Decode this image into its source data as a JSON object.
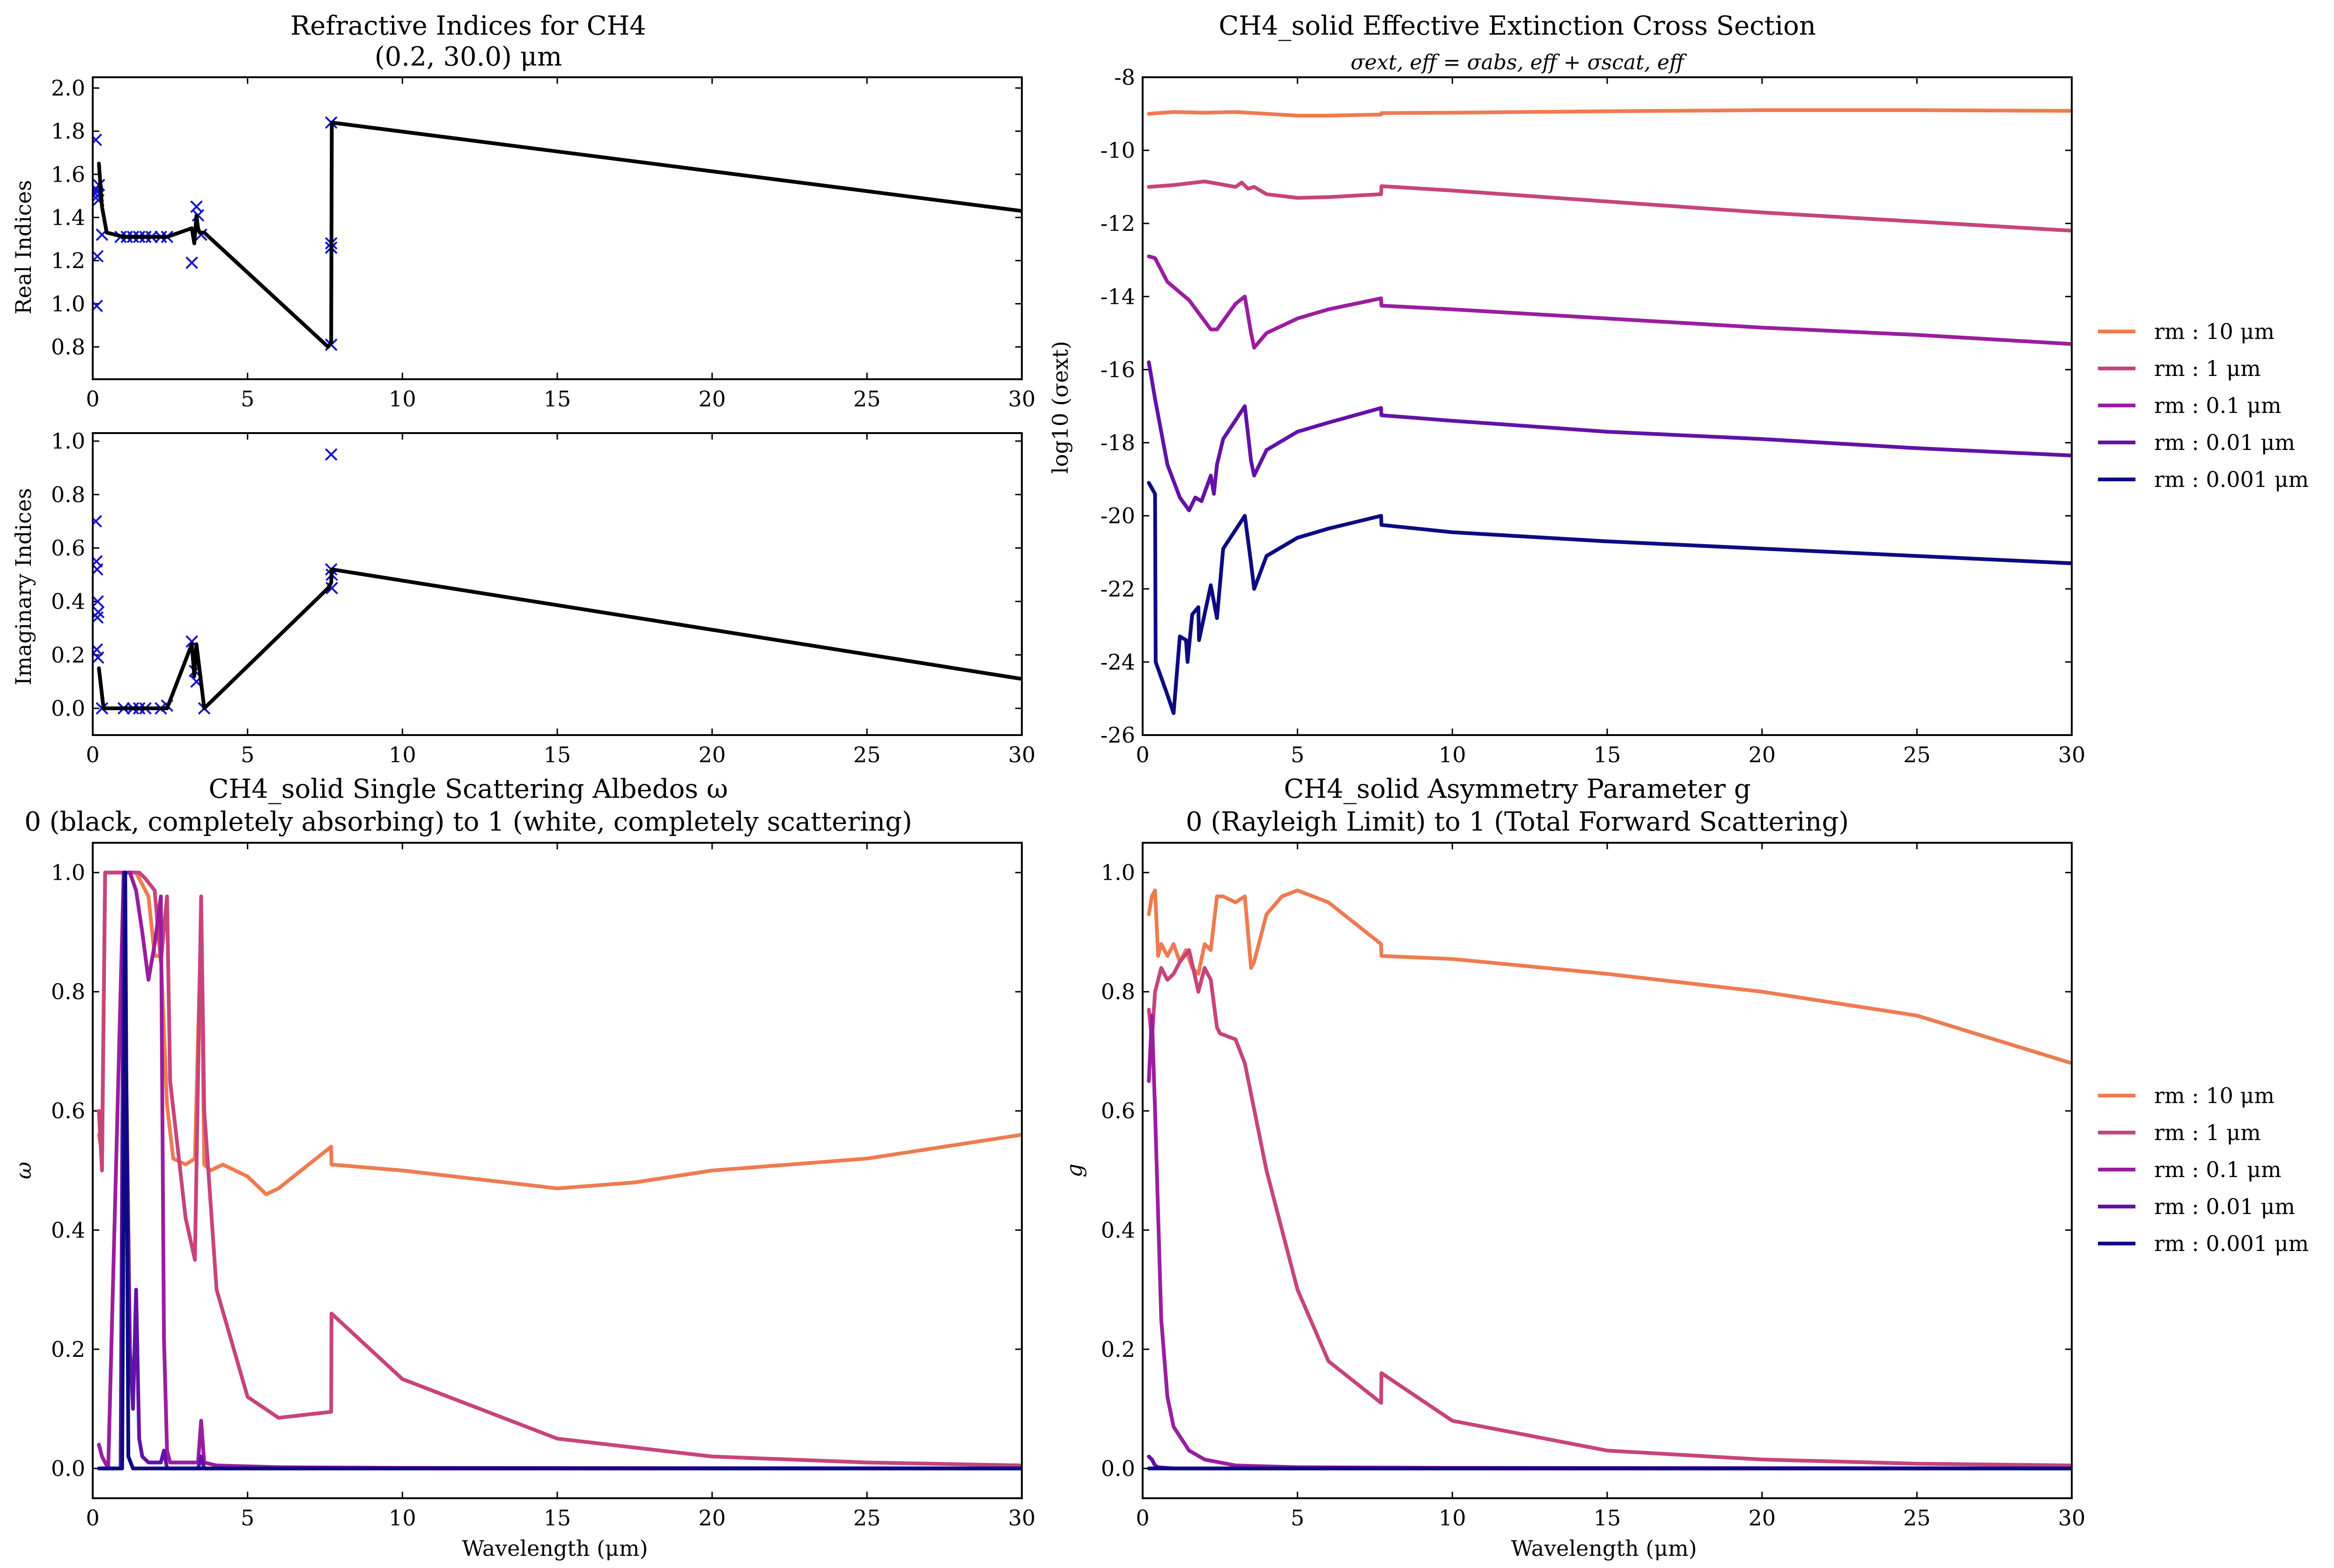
{
  "figure": {
    "panels": {
      "ri": {
        "title_line1": "Refractive Indices for CH4",
        "title_line2": "(0.2, 30.0) μm",
        "real_ylabel": "Real Indices",
        "imag_ylabel": "Imaginary Indices"
      },
      "ext": {
        "title": "CH4_solid Effective Extinction Cross Section",
        "subtitle": "σext, eff = σabs, eff + σscat, eff",
        "ylabel": "log10 (σext)"
      },
      "alb": {
        "title_line1": "CH4_solid Single Scattering Albedos ω",
        "title_line2": "0 (black, completely absorbing) to 1 (white, completely scattering)",
        "ylabel": "ω",
        "xlabel": "Wavelength (μm)"
      },
      "asym": {
        "title_line1": "CH4_solid Asymmetry Parameter g",
        "title_line2": "0 (Rayleigh Limit) to 1 (Total Forward Scattering)",
        "ylabel": "g",
        "xlabel": "Wavelength (μm)"
      }
    },
    "legend": [
      "rm : 10 μm",
      "rm : 1 μm",
      "rm : 0.1 μm",
      "rm : 0.01 μm",
      "rm : 0.001 μm"
    ],
    "colors": {
      "r10": "#ee7b51",
      "r1": "#c7447b",
      "r01": "#9a1d9f",
      "r001": "#6212a6",
      "r0001": "#0d0a82",
      "markers": "#1515cc",
      "interp": "#000000"
    }
  },
  "chart_data": [
    {
      "id": "real",
      "type": "scatter",
      "title": "Refractive Indices for CH4 (0.2, 30.0) μm",
      "ylabel": "Real Indices",
      "xlim": [
        0,
        30
      ],
      "ylim": [
        0.65,
        2.05
      ],
      "xticks": [
        0,
        5,
        10,
        15,
        20,
        25,
        30
      ],
      "yticks": [
        0.8,
        1.0,
        1.2,
        1.4,
        1.6,
        1.8,
        2.0
      ],
      "series": [
        {
          "role": "measured",
          "marker": "x",
          "x": [
            0.1,
            0.12,
            0.14,
            0.16,
            0.18,
            0.2,
            0.15,
            0.13,
            0.3,
            0.9,
            1.1,
            1.3,
            1.5,
            1.7,
            1.9,
            2.2,
            2.4,
            3.2,
            3.35,
            3.4,
            3.5,
            7.7,
            7.7,
            7.7,
            7.7
          ],
          "y": [
            1.76,
            1.53,
            1.52,
            1.5,
            1.48,
            1.55,
            1.22,
            0.99,
            1.32,
            1.31,
            1.31,
            1.31,
            1.31,
            1.31,
            1.31,
            1.31,
            1.31,
            1.19,
            1.45,
            1.41,
            1.32,
            1.84,
            1.28,
            1.26,
            0.81
          ]
        },
        {
          "role": "interpolated",
          "line": true,
          "x": [
            0.2,
            0.3,
            0.45,
            1.0,
            2.0,
            2.4,
            3.2,
            3.28,
            3.35,
            3.4,
            3.45,
            3.6,
            7.6,
            7.7,
            7.72,
            30
          ],
          "y": [
            1.65,
            1.45,
            1.33,
            1.31,
            1.31,
            1.31,
            1.35,
            1.28,
            1.41,
            1.35,
            1.33,
            1.33,
            0.8,
            0.82,
            1.84,
            1.43
          ]
        }
      ]
    },
    {
      "id": "imag",
      "type": "scatter",
      "ylabel": "Imaginary Indices",
      "xlim": [
        0,
        30
      ],
      "ylim": [
        -0.1,
        1.03
      ],
      "xticks": [
        0,
        5,
        10,
        15,
        20,
        25,
        30
      ],
      "yticks": [
        0.0,
        0.2,
        0.4,
        0.6,
        0.8,
        1.0
      ],
      "series": [
        {
          "role": "measured",
          "marker": "x",
          "x": [
            0.1,
            0.12,
            0.14,
            0.16,
            0.18,
            0.15,
            0.13,
            0.17,
            0.3,
            1.0,
            1.3,
            1.5,
            1.7,
            2.2,
            2.4,
            3.2,
            3.3,
            3.35,
            3.6,
            7.7,
            7.7,
            7.72,
            7.72
          ],
          "y": [
            0.7,
            0.55,
            0.52,
            0.4,
            0.36,
            0.34,
            0.22,
            0.19,
            0.0,
            0.0,
            0.0,
            0.0,
            0.0,
            0.0,
            0.01,
            0.25,
            0.14,
            0.1,
            0.0,
            0.95,
            0.52,
            0.5,
            0.45
          ]
        },
        {
          "role": "interpolated",
          "line": true,
          "x": [
            0.2,
            0.35,
            1.0,
            2.0,
            2.4,
            3.2,
            3.28,
            3.35,
            3.6,
            7.6,
            7.7,
            7.72,
            30
          ],
          "y": [
            0.15,
            0.0,
            0.0,
            0.0,
            0.0,
            0.24,
            0.12,
            0.24,
            0.0,
            0.45,
            0.47,
            0.52,
            0.11
          ]
        }
      ]
    },
    {
      "id": "ext",
      "type": "line",
      "title": "CH4_solid Effective Extinction Cross Section",
      "ylabel": "log10 (σext)",
      "xlim": [
        0,
        30
      ],
      "ylim": [
        -26,
        -8
      ],
      "xticks": [
        0,
        5,
        10,
        15,
        20,
        25,
        30
      ],
      "yticks": [
        -26,
        -24,
        -22,
        -20,
        -18,
        -16,
        -14,
        -12,
        -10,
        -8
      ],
      "series": [
        {
          "name": "rm : 10 μm",
          "key": "r10",
          "x": [
            0.2,
            0.5,
            1,
            2,
            3,
            4,
            5,
            6,
            7.7,
            7.71,
            10,
            15,
            20,
            25,
            30
          ],
          "y": [
            -9.0,
            -8.98,
            -8.95,
            -8.97,
            -8.95,
            -9.0,
            -9.05,
            -9.05,
            -9.02,
            -8.98,
            -8.97,
            -8.93,
            -8.9,
            -8.9,
            -8.92
          ]
        },
        {
          "name": "rm : 1 μm",
          "key": "r1",
          "x": [
            0.2,
            1,
            2,
            3,
            3.2,
            3.4,
            3.6,
            4,
            5,
            6,
            7.7,
            7.71,
            10,
            15,
            20,
            25,
            30
          ],
          "y": [
            -11.0,
            -10.95,
            -10.85,
            -11.0,
            -10.88,
            -11.05,
            -11.0,
            -11.2,
            -11.3,
            -11.28,
            -11.2,
            -10.98,
            -11.1,
            -11.4,
            -11.7,
            -11.95,
            -12.2
          ]
        },
        {
          "name": "rm : 0.1 μm",
          "key": "r01",
          "x": [
            0.2,
            0.4,
            0.8,
            1.5,
            2.2,
            2.4,
            3.0,
            3.3,
            3.5,
            3.6,
            4,
            5,
            6,
            7.7,
            7.71,
            10,
            15,
            20,
            25,
            30
          ],
          "y": [
            -12.9,
            -12.95,
            -13.6,
            -14.1,
            -14.9,
            -14.9,
            -14.2,
            -14.0,
            -15.0,
            -15.4,
            -15.0,
            -14.6,
            -14.35,
            -14.05,
            -14.25,
            -14.35,
            -14.6,
            -14.85,
            -15.05,
            -15.3
          ]
        },
        {
          "name": "rm : 0.01 μm",
          "key": "r001",
          "x": [
            0.2,
            0.4,
            0.8,
            1.2,
            1.5,
            1.7,
            1.9,
            2.2,
            2.3,
            2.4,
            2.6,
            3.3,
            3.5,
            3.6,
            4,
            5,
            6,
            7.7,
            7.71,
            10,
            15,
            20,
            25,
            30
          ],
          "y": [
            -15.8,
            -16.8,
            -18.6,
            -19.5,
            -19.85,
            -19.5,
            -19.6,
            -18.9,
            -19.4,
            -18.6,
            -17.9,
            -17.0,
            -18.5,
            -18.9,
            -18.2,
            -17.7,
            -17.45,
            -17.05,
            -17.25,
            -17.4,
            -17.7,
            -17.9,
            -18.15,
            -18.35
          ]
        },
        {
          "name": "rm : 0.001 μm",
          "key": "r0001",
          "x": [
            0.2,
            0.4,
            0.42,
            0.8,
            1.0,
            1.2,
            1.4,
            1.45,
            1.6,
            1.8,
            1.82,
            2.2,
            2.4,
            2.6,
            3.3,
            3.5,
            3.6,
            4,
            5,
            6,
            7.7,
            7.71,
            10,
            15,
            20,
            25,
            30
          ],
          "y": [
            -19.1,
            -19.4,
            -24.0,
            -24.9,
            -25.4,
            -23.3,
            -23.4,
            -24.0,
            -22.7,
            -22.5,
            -23.4,
            -21.9,
            -22.8,
            -20.9,
            -20.0,
            -21.3,
            -22.0,
            -21.1,
            -20.6,
            -20.35,
            -20.0,
            -20.25,
            -20.45,
            -20.7,
            -20.9,
            -21.1,
            -21.3
          ]
        }
      ]
    },
    {
      "id": "alb",
      "type": "line",
      "title": "CH4_solid Single Scattering Albedos ω",
      "subtitle": "0 (black, completely absorbing) to 1 (white, completely scattering)",
      "xlabel": "Wavelength (μm)",
      "ylabel": "ω",
      "xlim": [
        0,
        30
      ],
      "ylim": [
        -0.05,
        1.05
      ],
      "xticks": [
        0,
        5,
        10,
        15,
        20,
        25,
        30
      ],
      "yticks": [
        0.0,
        0.2,
        0.4,
        0.6,
        0.8,
        1.0
      ],
      "series": [
        {
          "name": "rm : 10 μm",
          "key": "r10",
          "x": [
            0.2,
            0.3,
            0.4,
            0.5,
            1.0,
            1.4,
            1.6,
            1.8,
            2.0,
            2.2,
            2.4,
            2.6,
            3.0,
            3.3,
            3.5,
            3.6,
            3.8,
            4.2,
            5,
            5.6,
            6,
            7.7,
            7.71,
            10,
            15,
            17.5,
            20,
            25,
            30
          ],
          "y": [
            0.56,
            0.53,
            1.0,
            1.0,
            1.0,
            1.0,
            0.98,
            0.96,
            0.86,
            0.86,
            0.61,
            0.52,
            0.51,
            0.52,
            0.92,
            0.51,
            0.5,
            0.51,
            0.49,
            0.46,
            0.47,
            0.54,
            0.51,
            0.5,
            0.47,
            0.48,
            0.5,
            0.52,
            0.56
          ]
        },
        {
          "name": "rm : 1 μm",
          "key": "r1",
          "x": [
            0.2,
            0.3,
            0.4,
            1.0,
            1.5,
            1.7,
            2.0,
            2.2,
            2.4,
            2.5,
            3.0,
            3.3,
            3.5,
            3.6,
            4,
            5,
            6,
            7.7,
            7.71,
            10,
            15,
            20,
            25,
            30
          ],
          "y": [
            0.6,
            0.5,
            1.0,
            1.0,
            1.0,
            0.99,
            0.97,
            0.85,
            0.96,
            0.65,
            0.42,
            0.35,
            0.96,
            0.6,
            0.3,
            0.12,
            0.085,
            0.095,
            0.26,
            0.15,
            0.05,
            0.02,
            0.01,
            0.005
          ]
        },
        {
          "name": "rm : 0.1 μm",
          "key": "r01",
          "x": [
            0.2,
            0.3,
            0.5,
            1.0,
            1.1,
            1.2,
            1.4,
            1.6,
            1.8,
            2.0,
            2.2,
            2.3,
            2.4,
            2.5,
            3.4,
            3.5,
            3.6,
            4,
            6,
            10,
            30
          ],
          "y": [
            0.04,
            0.02,
            0.0,
            1.0,
            1.0,
            1.0,
            0.97,
            0.9,
            0.82,
            0.88,
            0.96,
            0.22,
            0.03,
            0.01,
            0.01,
            0.08,
            0.01,
            0.005,
            0.002,
            0.001,
            0.0
          ]
        },
        {
          "name": "rm : 0.01 μm",
          "key": "r001",
          "x": [
            0.2,
            0.9,
            1.0,
            1.1,
            1.2,
            1.3,
            1.4,
            1.5,
            1.6,
            1.8,
            2.2,
            2.3,
            2.4,
            3.4,
            3.5,
            3.6,
            30
          ],
          "y": [
            0.0,
            0.0,
            1.0,
            0.6,
            0.2,
            0.1,
            0.3,
            0.05,
            0.02,
            0.01,
            0.01,
            0.03,
            0.0,
            0.0,
            0.02,
            0.0,
            0.0
          ]
        },
        {
          "name": "rm : 0.001 μm",
          "key": "r0001",
          "x": [
            0.2,
            0.95,
            1.05,
            1.15,
            1.3,
            30
          ],
          "y": [
            0.0,
            0.0,
            1.0,
            0.02,
            0.0,
            0.0
          ]
        }
      ]
    },
    {
      "id": "asym",
      "type": "line",
      "title": "CH4_solid Asymmetry Parameter g",
      "subtitle": "0 (Rayleigh Limit) to 1 (Total Forward Scattering)",
      "xlabel": "Wavelength (μm)",
      "ylabel": "g",
      "xlim": [
        0,
        30
      ],
      "ylim": [
        -0.05,
        1.05
      ],
      "xticks": [
        0,
        5,
        10,
        15,
        20,
        25,
        30
      ],
      "yticks": [
        0.0,
        0.2,
        0.4,
        0.6,
        0.8,
        1.0
      ],
      "series": [
        {
          "name": "rm : 10 μm",
          "key": "r10",
          "x": [
            0.2,
            0.3,
            0.4,
            0.5,
            0.6,
            0.8,
            1.0,
            1.2,
            1.4,
            1.6,
            1.8,
            2.0,
            2.2,
            2.4,
            2.6,
            3.0,
            3.3,
            3.5,
            3.6,
            4,
            4.5,
            5,
            6,
            7.7,
            7.71,
            10,
            15,
            20,
            25,
            30
          ],
          "y": [
            0.93,
            0.96,
            0.97,
            0.86,
            0.88,
            0.86,
            0.88,
            0.85,
            0.87,
            0.84,
            0.83,
            0.88,
            0.87,
            0.96,
            0.96,
            0.95,
            0.96,
            0.84,
            0.85,
            0.93,
            0.96,
            0.97,
            0.95,
            0.88,
            0.86,
            0.855,
            0.83,
            0.8,
            0.76,
            0.68
          ]
        },
        {
          "name": "rm : 1 μm",
          "key": "r1",
          "x": [
            0.2,
            0.3,
            0.4,
            0.6,
            0.8,
            1.0,
            1.2,
            1.5,
            1.8,
            2.0,
            2.2,
            2.4,
            2.5,
            3.0,
            3.3,
            4,
            5,
            6,
            7.7,
            7.71,
            10,
            15,
            20,
            25,
            30
          ],
          "y": [
            0.77,
            0.72,
            0.8,
            0.84,
            0.82,
            0.83,
            0.85,
            0.87,
            0.8,
            0.84,
            0.82,
            0.74,
            0.73,
            0.72,
            0.68,
            0.5,
            0.3,
            0.18,
            0.11,
            0.16,
            0.08,
            0.03,
            0.015,
            0.008,
            0.005
          ]
        },
        {
          "name": "rm : 0.1 μm",
          "key": "r01",
          "x": [
            0.2,
            0.3,
            0.4,
            0.6,
            0.8,
            1.0,
            1.5,
            2.0,
            3.0,
            5,
            10,
            30
          ],
          "y": [
            0.65,
            0.76,
            0.6,
            0.25,
            0.12,
            0.07,
            0.03,
            0.015,
            0.005,
            0.002,
            0.001,
            0.0
          ]
        },
        {
          "name": "rm : 0.01 μm",
          "key": "r001",
          "x": [
            0.2,
            0.3,
            0.4,
            0.5,
            1.0,
            30
          ],
          "y": [
            0.02,
            0.015,
            0.005,
            0.002,
            0.0,
            0.0
          ]
        },
        {
          "name": "rm : 0.001 μm",
          "key": "r0001",
          "x": [
            0.2,
            30
          ],
          "y": [
            0.0,
            0.0
          ]
        }
      ]
    }
  ]
}
